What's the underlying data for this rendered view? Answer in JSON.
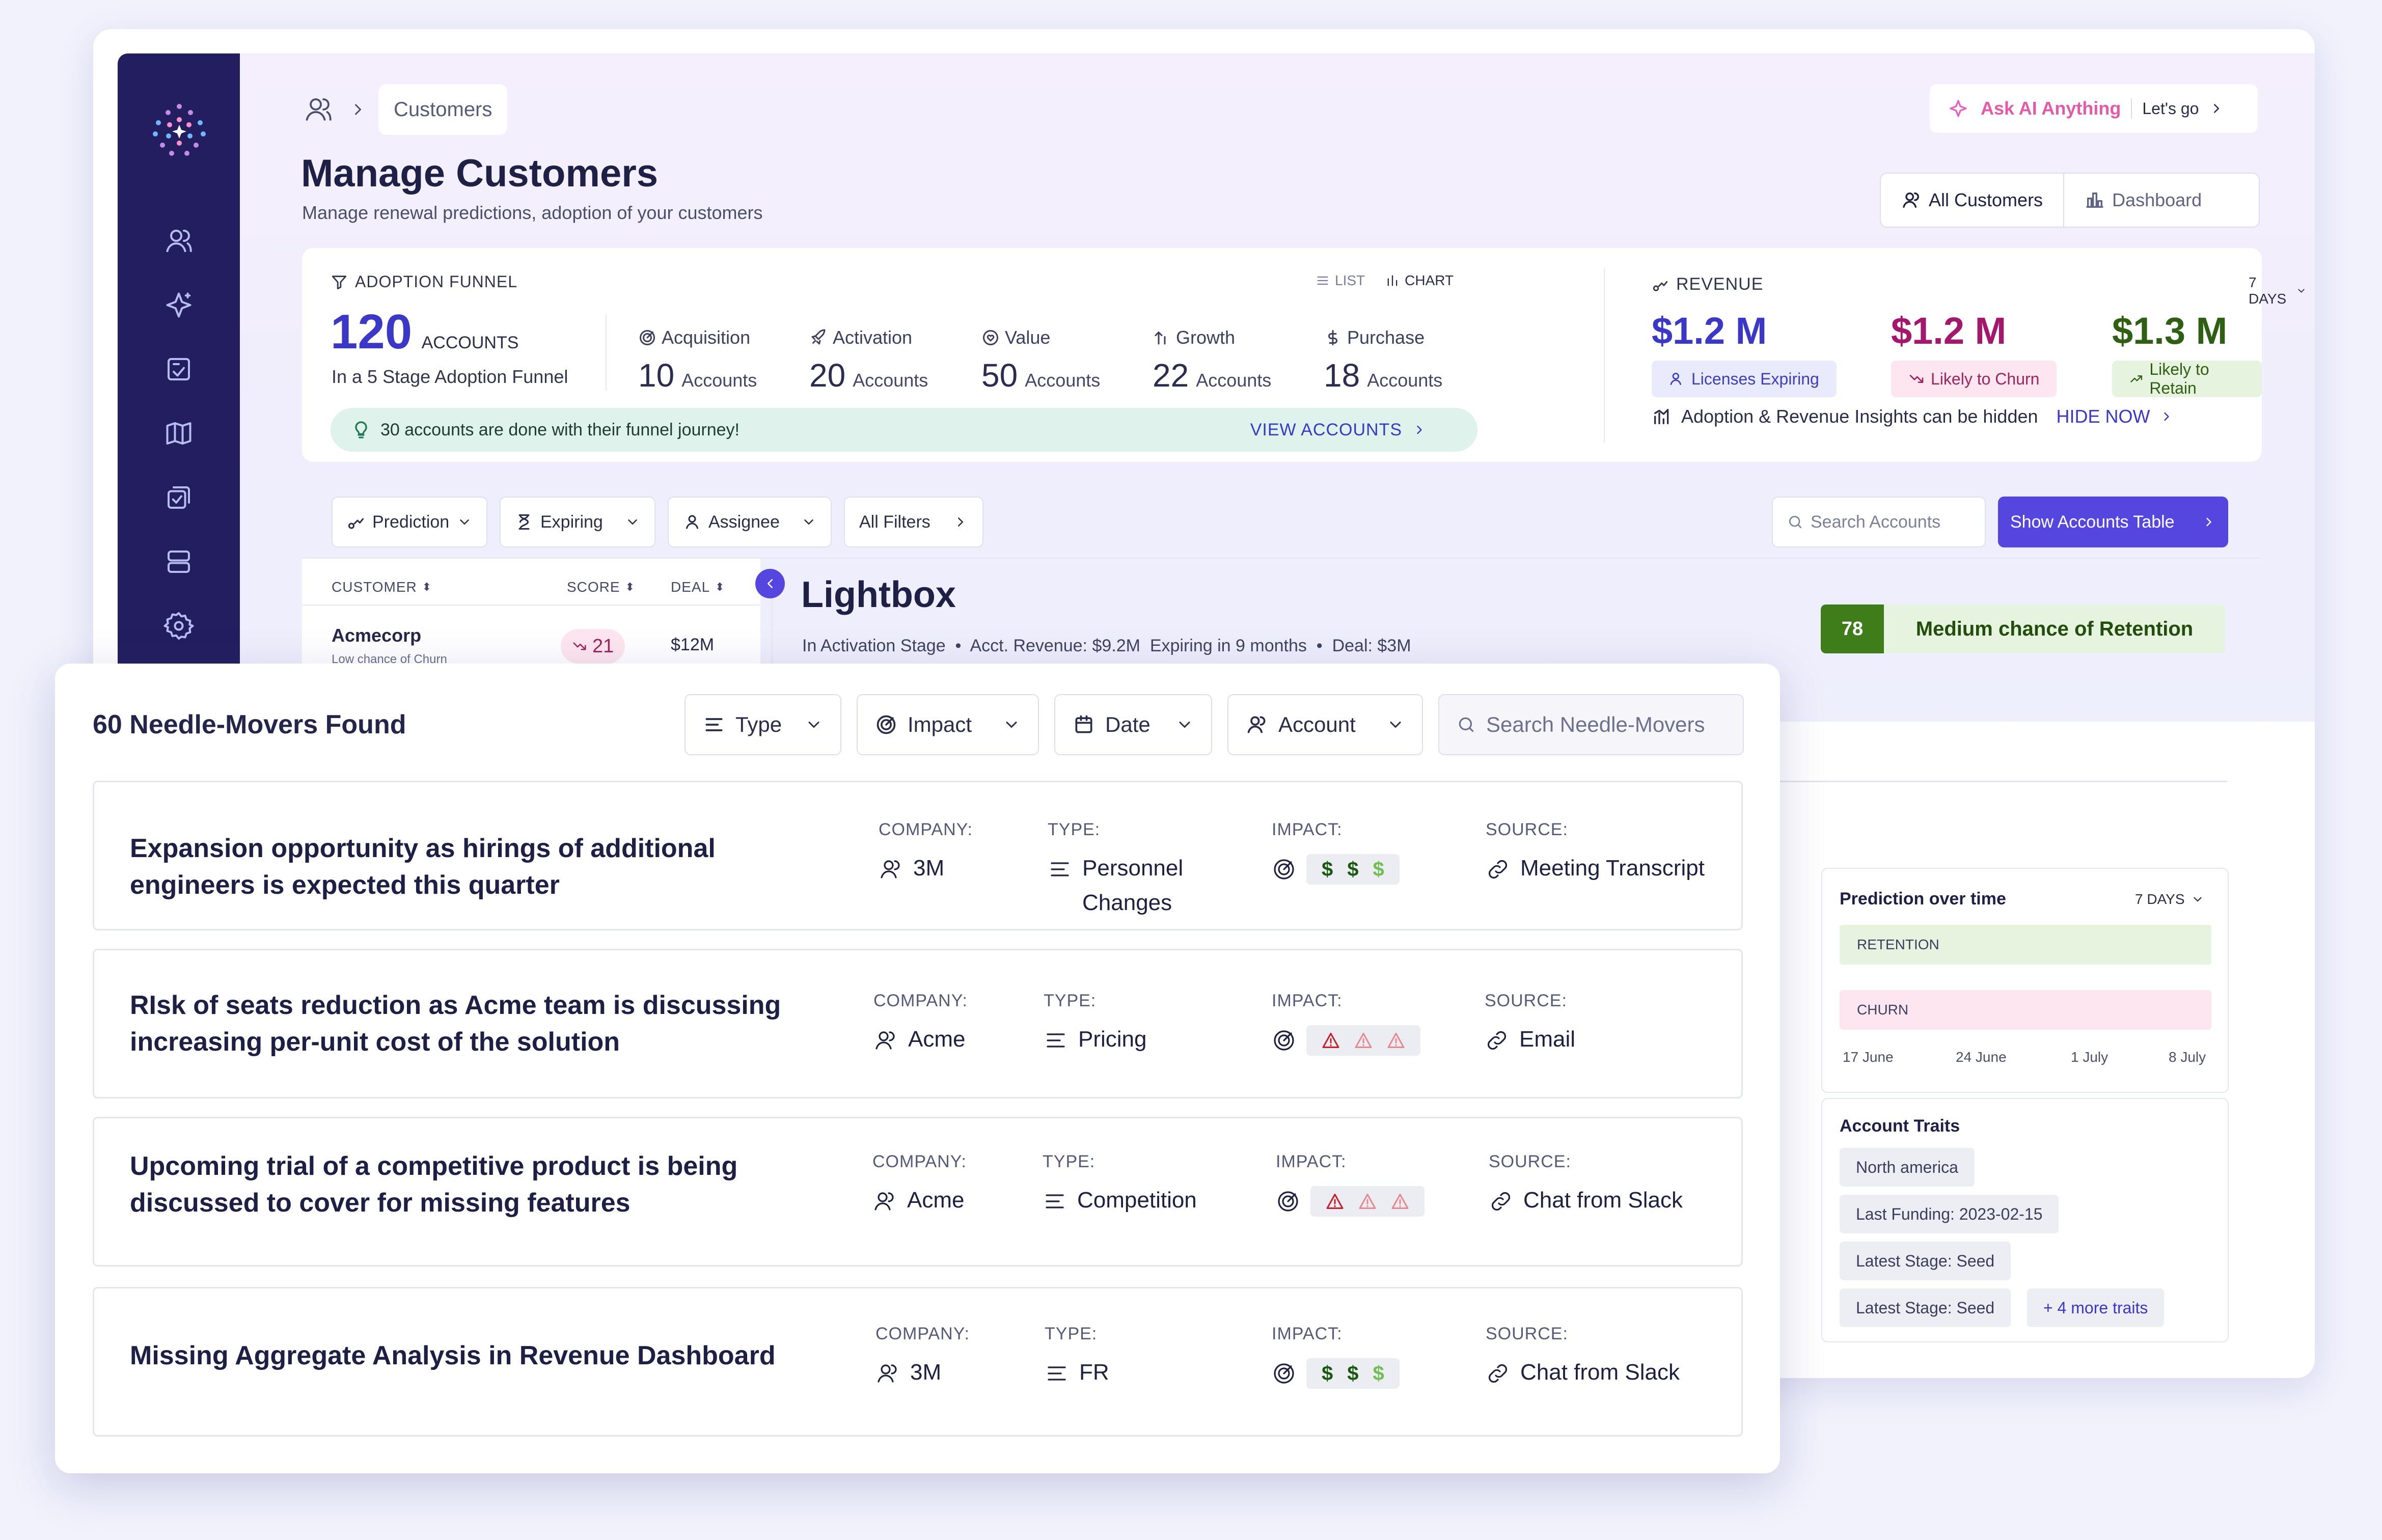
{
  "breadcrumb": {
    "current": "Customers"
  },
  "header": {
    "title": "Manage Customers",
    "subtitle": "Manage renewal predictions, adoption of your customers",
    "ask_ai": "Ask AI Anything",
    "ask_ai_action": "Let's go",
    "view_toggle": [
      "All Customers",
      "Dashboard"
    ]
  },
  "funnel": {
    "heading": "ADOPTION FUNNEL",
    "list": "LIST",
    "chart": "CHART",
    "total": "120",
    "total_unit": "ACCOUNTS",
    "total_caption": "In a 5 Stage Adoption Funnel",
    "stages": [
      {
        "name": "Acquisition",
        "count": "10",
        "unit": "Accounts",
        "icon": "target-icon"
      },
      {
        "name": "Activation",
        "count": "20",
        "unit": "Accounts",
        "icon": "rocket-icon"
      },
      {
        "name": "Value",
        "count": "50",
        "unit": "Accounts",
        "icon": "heart-icon"
      },
      {
        "name": "Growth",
        "count": "22",
        "unit": "Accounts",
        "icon": "arrow-up-icon"
      },
      {
        "name": "Purchase",
        "count": "18",
        "unit": "Accounts",
        "icon": "dollar-icon"
      }
    ],
    "banner": "30 accounts are done with their funnel journey!",
    "banner_action": "VIEW ACCOUNTS"
  },
  "revenue": {
    "heading": "REVENUE",
    "range": "7 DAYS",
    "items": [
      {
        "value": "$1.2 M",
        "label": "Licenses Expiring",
        "color": "#3b37c7",
        "bg": "#e9eafc",
        "fg": "#3d3dbd"
      },
      {
        "value": "$1.2 M",
        "label": "Likely to Churn",
        "color": "#a3176d",
        "bg": "#fde6ef",
        "fg": "#a0235d"
      },
      {
        "value": "$1.3 M",
        "label": "Likely to Retain",
        "color": "#2e5f12",
        "bg": "#e6f3de",
        "fg": "#2e5f12"
      }
    ],
    "note": "Adoption & Revenue Insights can be hidden",
    "note_action": "HIDE NOW"
  },
  "filters": {
    "items": [
      "Prediction",
      "Expiring",
      "Assignee",
      "All Filters"
    ],
    "search_placeholder": "Search Accounts",
    "show_table": "Show Accounts Table"
  },
  "table": {
    "columns": [
      "CUSTOMER",
      "SCORE",
      "DEAL"
    ],
    "rows": [
      {
        "customer": "Acmecorp",
        "caption": "Low chance of Churn",
        "score": "21",
        "deal": "$12M"
      }
    ]
  },
  "account": {
    "name": "Lightbox",
    "meta": "In Activation Stage  •  Acct. Revenue: $9.2M  Expiring in 9 months  •  Deal: $3M",
    "score": "78",
    "score_label": "Medium chance of Retention"
  },
  "prediction": {
    "title": "Prediction over time",
    "range": "7 DAYS",
    "bars": [
      "RETENTION",
      "CHURN"
    ],
    "dates": [
      "17 June",
      "24 June",
      "1 July",
      "8 July"
    ]
  },
  "traits": {
    "title": "Account Traits",
    "items": [
      "North america",
      "Last Funding: 2023-02-15",
      "Latest Stage: Seed",
      "Latest Stage: Seed"
    ],
    "more": "+ 4 more traits"
  },
  "needle": {
    "title": "60 Needle-Movers Found",
    "filters": [
      "Type",
      "Impact",
      "Date",
      "Account"
    ],
    "search_placeholder": "Search Needle-Movers",
    "labels": {
      "company": "COMPANY:",
      "type": "TYPE:",
      "impact": "IMPACT:",
      "source": "SOURCE:"
    },
    "cards": [
      {
        "title": "Expansion opportunity as hirings of additional engineers is expected this quarter",
        "company": "3M",
        "type": "Personnel Changes",
        "impact_kind": "dollar",
        "source": "Meeting Transcript"
      },
      {
        "title": "RIsk of seats reduction as Acme team is discussing increasing per-unit cost of the solution",
        "company": "Acme",
        "type": "Pricing",
        "impact_kind": "warning",
        "source": "Email"
      },
      {
        "title": "Upcoming trial of a competitive product is being discussed to cover for missing features",
        "company": "Acme",
        "type": "Competition",
        "impact_kind": "warning",
        "source": "Chat from Slack"
      },
      {
        "title": "Missing Aggregate Analysis in Revenue Dashboard",
        "company": "3M",
        "type": "FR",
        "impact_kind": "dollar",
        "source": "Chat from Slack"
      }
    ]
  }
}
